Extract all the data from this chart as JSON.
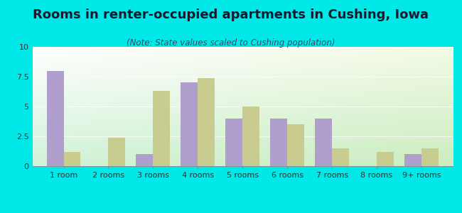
{
  "title": "Rooms in renter-occupied apartments in Cushing, Iowa",
  "subtitle": "(Note: State values scaled to Cushing population)",
  "categories": [
    "1 room",
    "2 rooms",
    "3 rooms",
    "4 rooms",
    "5 rooms",
    "6 rooms",
    "7 rooms",
    "8 rooms",
    "9+ rooms"
  ],
  "cushing_values": [
    8.0,
    0,
    1.0,
    7.0,
    4.0,
    4.0,
    4.0,
    0,
    1.0
  ],
  "iowa_values": [
    1.2,
    2.4,
    6.3,
    7.4,
    5.0,
    3.5,
    1.5,
    1.2,
    1.5
  ],
  "cushing_color": "#b09fcc",
  "iowa_color": "#c8cc8f",
  "ylim": [
    0,
    10
  ],
  "yticks": [
    0,
    2.5,
    5,
    7.5,
    10
  ],
  "background_color": "#00e8e8",
  "bar_width": 0.38,
  "title_fontsize": 13,
  "subtitle_fontsize": 8.5,
  "legend_fontsize": 9,
  "tick_fontsize": 8
}
